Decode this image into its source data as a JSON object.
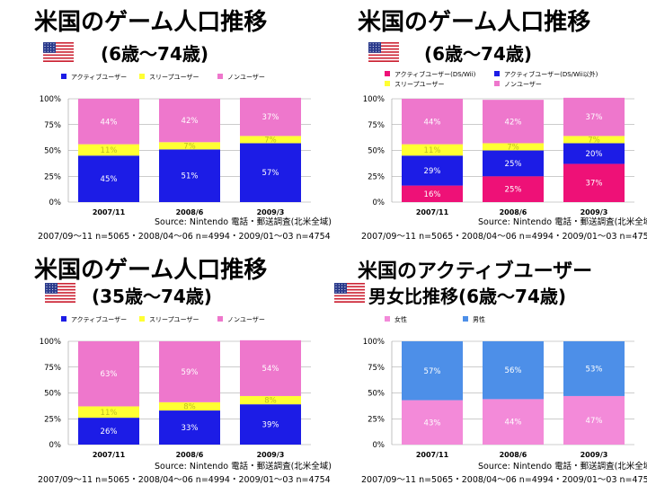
{
  "colors": {
    "active": "#1c1ce6",
    "sleep": "#ffff33",
    "non": "#ee77cc",
    "active_dswii": "#ee1177",
    "female": "#f38ad9",
    "male": "#4d8fe8"
  },
  "flag_icon": "us-flag-icon",
  "source": "Source: Nintendo 電話・郵送調査(北米全域)",
  "sample": "2007/09～11 n=5065・2008/04～06 n=4994・2009/01～03 n=4754",
  "panels": [
    {
      "title": "米国のゲーム人口推移",
      "subtitle": "(6歳～74歳)",
      "chart_data": {
        "type": "bar",
        "stacked": true,
        "categories": [
          "2007/11",
          "2008/6",
          "2009/3"
        ],
        "ylim": [
          0,
          100
        ],
        "yticks": [
          "0%",
          "25%",
          "50%",
          "75%",
          "100%"
        ],
        "legend_position": "top-left",
        "series": [
          {
            "name": "アクティブユーザー",
            "color_key": "active",
            "values": [
              45,
              51,
              57
            ],
            "labels": [
              "45%",
              "51%",
              "57%"
            ]
          },
          {
            "name": "スリープユーザー",
            "color_key": "sleep",
            "values": [
              11,
              7,
              7
            ],
            "labels": [
              "11%",
              "7%",
              "7%"
            ]
          },
          {
            "name": "ノンユーザー",
            "color_key": "non",
            "values": [
              44,
              42,
              37
            ],
            "labels": [
              "44%",
              "42%",
              "37%"
            ]
          }
        ]
      }
    },
    {
      "title": "米国のゲーム人口推移",
      "subtitle": "(6歳～74歳)",
      "chart_data": {
        "type": "bar",
        "stacked": true,
        "categories": [
          "2007/11",
          "2008/6",
          "2009/3"
        ],
        "ylim": [
          0,
          100
        ],
        "yticks": [
          "0%",
          "25%",
          "50%",
          "75%",
          "100%"
        ],
        "legend_position": "top-left",
        "series": [
          {
            "name": "アクティブユーザー(DS/Wii)",
            "color_key": "active_dswii",
            "values": [
              16,
              25,
              37
            ],
            "labels": [
              "16%",
              "25%",
              "37%"
            ]
          },
          {
            "name": "アクティブユーザー(DS/Wii以外)",
            "color_key": "active",
            "values": [
              29,
              25,
              20
            ],
            "labels": [
              "29%",
              "25%",
              "20%"
            ]
          },
          {
            "name": "スリープユーザー",
            "color_key": "sleep",
            "values": [
              11,
              7,
              7
            ],
            "labels": [
              "11%",
              "7%",
              "7%"
            ]
          },
          {
            "name": "ノンユーザー",
            "color_key": "non",
            "values": [
              44,
              42,
              37
            ],
            "labels": [
              "44%",
              "42%",
              "37%"
            ]
          }
        ]
      }
    },
    {
      "title": "米国のゲーム人口推移",
      "subtitle": "(35歳～74歳)",
      "chart_data": {
        "type": "bar",
        "stacked": true,
        "categories": [
          "2007/11",
          "2008/6",
          "2009/3"
        ],
        "ylim": [
          0,
          100
        ],
        "yticks": [
          "0%",
          "25%",
          "50%",
          "75%",
          "100%"
        ],
        "legend_position": "top-left",
        "series": [
          {
            "name": "アクティブユーザー",
            "color_key": "active",
            "values": [
              26,
              33,
              39
            ],
            "labels": [
              "26%",
              "33%",
              "39%"
            ]
          },
          {
            "name": "スリープユーザー",
            "color_key": "sleep",
            "values": [
              11,
              8,
              8
            ],
            "labels": [
              "11%",
              "8%",
              "8%"
            ]
          },
          {
            "name": "ノンユーザー",
            "color_key": "non",
            "values": [
              63,
              59,
              54
            ],
            "labels": [
              "63%",
              "59%",
              "54%"
            ]
          }
        ]
      }
    },
    {
      "title": "米国のアクティブユーザー",
      "subtitle": "男女比推移(6歳～74歳)",
      "chart_data": {
        "type": "bar",
        "stacked": true,
        "categories": [
          "2007/11",
          "2008/6",
          "2009/3"
        ],
        "ylim": [
          0,
          100
        ],
        "yticks": [
          "0%",
          "25%",
          "50%",
          "75%",
          "100%"
        ],
        "legend_position": "top-left",
        "series": [
          {
            "name": "女性",
            "color_key": "female",
            "values": [
              43,
              44,
              47
            ],
            "labels": [
              "43%",
              "44%",
              "47%"
            ]
          },
          {
            "name": "男性",
            "color_key": "male",
            "values": [
              57,
              56,
              53
            ],
            "labels": [
              "57%",
              "56%",
              "53%"
            ]
          }
        ]
      }
    }
  ]
}
